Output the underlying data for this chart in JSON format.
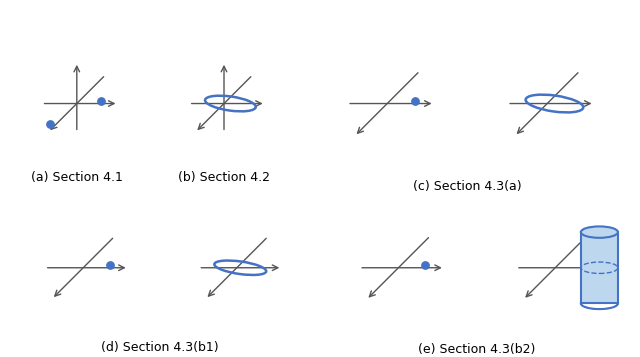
{
  "labels": [
    "(a) Section 4.1",
    "(b) Section 4.2",
    "(c) Section 4.3(a)",
    "(d) Section 4.3(b1)",
    "(e) Section 4.3(b2)"
  ],
  "dot_color": "#4472C4",
  "ellipse_color": "#4472C4",
  "axis_color": "#555555",
  "cylinder_face_color": "#BDD7EE",
  "cylinder_edge_color": "#4472C4",
  "background": "#ffffff",
  "label_fontsize": 9
}
